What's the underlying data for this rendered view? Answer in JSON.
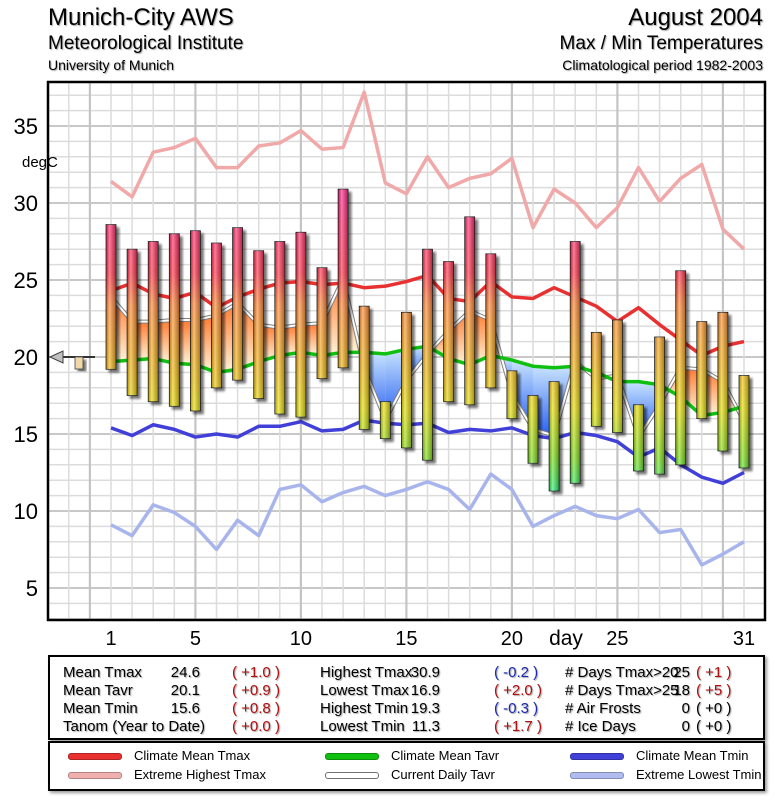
{
  "header": {
    "title": "Munich-City AWS",
    "subtitle1": "Meteorological Institute",
    "subtitle2": "University of Munich",
    "month": "August 2004",
    "subtitle3": "Max / Min Temperatures",
    "subtitle4": "Climatological period 1982-2003"
  },
  "chart_data": {
    "type": "bar",
    "title": "Max / Min Temperatures August 2004",
    "xlabel": "day",
    "ylabel": "degC",
    "xlim": [
      -2,
      32
    ],
    "ylim": [
      2,
      38
    ],
    "grid": true,
    "yticks": [
      5,
      10,
      15,
      20,
      25,
      30,
      35
    ],
    "ytick_labels": [
      "5",
      "10",
      "15",
      "20",
      "25",
      "30",
      "35"
    ],
    "xticks": [
      1,
      5,
      10,
      15,
      20,
      25,
      31
    ],
    "xtick_labels": [
      "1",
      "5",
      "10",
      "15",
      "20",
      "25",
      "31"
    ],
    "days": [
      1,
      2,
      3,
      4,
      5,
      6,
      7,
      8,
      9,
      10,
      11,
      12,
      13,
      14,
      15,
      16,
      17,
      18,
      19,
      20,
      21,
      22,
      23,
      24,
      25,
      26,
      27,
      28,
      29,
      30,
      31
    ],
    "daily_tmax": [
      28.6,
      27.0,
      27.5,
      28.0,
      28.2,
      27.4,
      28.4,
      26.9,
      27.5,
      28.1,
      25.8,
      30.9,
      23.3,
      17.1,
      22.9,
      27.0,
      26.2,
      29.1,
      26.7,
      19.1,
      17.5,
      18.4,
      27.5,
      21.6,
      22.4,
      16.9,
      21.3,
      25.6,
      22.3,
      22.9,
      18.8
    ],
    "daily_tmin": [
      19.2,
      17.5,
      17.1,
      16.8,
      16.5,
      18.0,
      18.5,
      17.3,
      16.3,
      16.1,
      18.6,
      19.3,
      15.3,
      14.7,
      14.1,
      13.3,
      17.1,
      16.9,
      18.0,
      16.0,
      13.1,
      11.3,
      11.8,
      15.5,
      15.1,
      12.6,
      12.4,
      13.0,
      16.0,
      13.9,
      12.8
    ],
    "series": [
      {
        "name": "Climate Mean Tmax",
        "color": "#e83030",
        "values": [
          24.3,
          24.8,
          24.1,
          23.8,
          24.2,
          23.2,
          23.9,
          24.4,
          24.8,
          24.9,
          24.7,
          24.8,
          24.5,
          24.6,
          24.9,
          25.3,
          23.8,
          23.6,
          24.9,
          23.9,
          23.8,
          24.5,
          23.9,
          23.3,
          22.3,
          23.2,
          22.1,
          21.1,
          20.1,
          20.7,
          21.0
        ]
      },
      {
        "name": "Extreme Highest Tmax",
        "color": "#f0a8a8",
        "values": [
          31.4,
          30.4,
          33.3,
          33.6,
          34.2,
          32.3,
          32.3,
          33.7,
          33.9,
          34.7,
          33.5,
          33.6,
          37.2,
          31.3,
          30.6,
          33.0,
          31.0,
          31.6,
          31.9,
          32.9,
          28.4,
          30.9,
          30.0,
          28.4,
          29.7,
          32.3,
          30.1,
          31.6,
          32.5,
          28.3,
          27.0
        ]
      },
      {
        "name": "Climate Mean Tavr",
        "color": "#10c010",
        "values": [
          19.7,
          19.8,
          19.9,
          19.6,
          19.5,
          19.0,
          19.2,
          19.7,
          20.1,
          20.3,
          20.1,
          20.3,
          20.3,
          20.2,
          20.5,
          20.7,
          19.9,
          19.5,
          20.1,
          19.8,
          19.4,
          19.3,
          19.4,
          19.0,
          18.4,
          18.4,
          18.2,
          17.4,
          16.2,
          16.4,
          16.8
        ]
      },
      {
        "name": "Current Daily Tavr",
        "color": "#ffffff",
        "values": [
          23.9,
          22.3,
          22.3,
          22.4,
          22.4,
          22.7,
          23.5,
          22.1,
          21.9,
          22.1,
          22.2,
          25.1,
          19.3,
          15.9,
          18.5,
          20.2,
          21.7,
          23.0,
          22.4,
          17.6,
          15.3,
          14.9,
          19.7,
          18.6,
          18.8,
          14.8,
          16.9,
          19.3,
          19.2,
          18.4,
          15.8
        ]
      },
      {
        "name": "Climate Mean Tmin",
        "color": "#4040d8",
        "values": [
          15.4,
          14.9,
          15.6,
          15.3,
          14.8,
          15.0,
          14.8,
          15.5,
          15.5,
          15.8,
          15.2,
          15.3,
          15.9,
          15.7,
          15.6,
          15.7,
          15.1,
          15.3,
          15.2,
          15.4,
          14.9,
          14.7,
          15.1,
          14.9,
          14.5,
          13.5,
          14.1,
          13.0,
          12.2,
          11.8,
          12.5
        ]
      },
      {
        "name": "Extreme Lowest Tmin",
        "color": "#a8b4ec",
        "values": [
          9.1,
          8.4,
          10.4,
          9.9,
          9.0,
          7.5,
          9.4,
          8.4,
          11.4,
          11.7,
          10.6,
          11.2,
          11.6,
          11.0,
          11.4,
          11.9,
          11.4,
          10.1,
          12.4,
          11.4,
          9.0,
          9.7,
          10.3,
          9.7,
          9.5,
          10.1,
          8.6,
          8.8,
          6.5,
          7.2,
          8.0
        ]
      }
    ],
    "tanom_marker": {
      "reference": 20.0,
      "anomaly": 0.0
    },
    "legend_position": "bottom"
  },
  "stats": {
    "col1": [
      {
        "label": "Mean Tmax",
        "value": "24.6",
        "anom": "( +1.0 )",
        "sign": "pos"
      },
      {
        "label": "Mean Tavr",
        "value": "20.1",
        "anom": "( +0.9 )",
        "sign": "pos"
      },
      {
        "label": "Mean Tmin",
        "value": "15.6",
        "anom": "( +0.8 )",
        "sign": "pos"
      },
      {
        "label": "Tanom (Year to Date)",
        "value": "",
        "anom": "( +0.0 )",
        "sign": "pos"
      }
    ],
    "col2": [
      {
        "label": "Highest Tmax",
        "value": "30.9",
        "anom": "( -0.2 )",
        "sign": "neg"
      },
      {
        "label": "Lowest Tmax",
        "value": "16.9",
        "anom": "( +2.0 )",
        "sign": "pos"
      },
      {
        "label": "Highest Tmin",
        "value": "19.3",
        "anom": "( -0.3 )",
        "sign": "neg"
      },
      {
        "label": "Lowest Tmin",
        "value": "11.3",
        "anom": "( +1.7 )",
        "sign": "pos"
      }
    ],
    "col3": [
      {
        "label": "# Days Tmax>20",
        "value": "25",
        "anom": "( +1 )",
        "sign": "pos"
      },
      {
        "label": "# Days Tmax>25",
        "value": "18",
        "anom": "( +5 )",
        "sign": "pos"
      },
      {
        "label": "# Air Frosts",
        "value": "0",
        "anom": "( +0 )",
        "sign": "zero"
      },
      {
        "label": "# Ice Days",
        "value": "0",
        "anom": "( +0 )",
        "sign": "zero"
      }
    ]
  },
  "legend": [
    {
      "label": "Climate Mean Tmax",
      "color": "#e83030"
    },
    {
      "label": "Extreme Highest Tmax",
      "color": "#f0b0b0"
    },
    {
      "label": "Climate Mean Tavr",
      "color": "#10c010"
    },
    {
      "label": "Current Daily Tavr",
      "color": "#ffffff"
    },
    {
      "label": "Climate Mean Tmin",
      "color": "#4040d8"
    },
    {
      "label": "Extreme Lowest Tmin",
      "color": "#b0bcf0"
    }
  ]
}
